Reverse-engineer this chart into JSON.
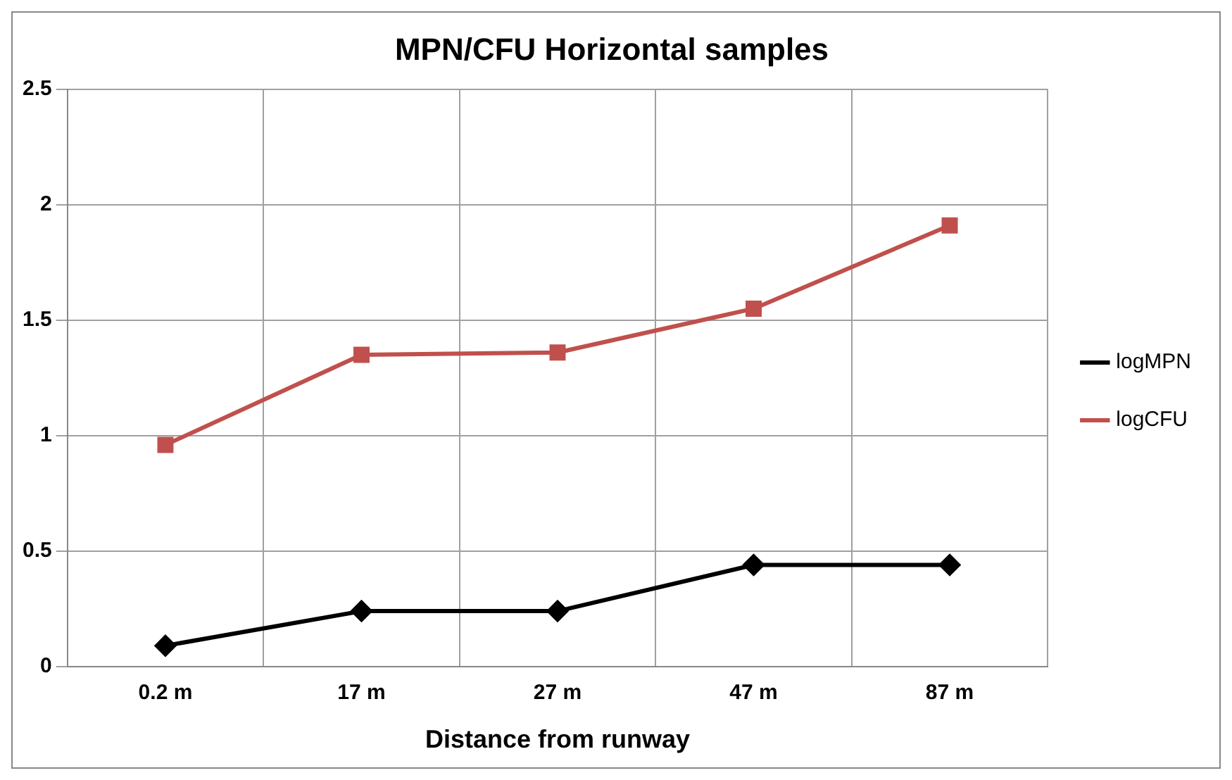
{
  "chart_data": {
    "type": "line",
    "title": "MPN/CFU Horizontal samples",
    "xlabel": "Distance from runway",
    "categories": [
      "0.2 m",
      "17 m",
      "27 m",
      "47 m",
      "87 m"
    ],
    "series": [
      {
        "name": "logMPN",
        "color": "#000000",
        "marker": "diamond",
        "values": [
          0.09,
          0.24,
          0.24,
          0.44,
          0.44
        ]
      },
      {
        "name": "logCFU",
        "color": "#c0504d",
        "marker": "square",
        "values": [
          0.96,
          1.35,
          1.36,
          1.55,
          1.91
        ]
      }
    ],
    "ylim": [
      0,
      2.5
    ],
    "yticks": [
      0,
      0.5,
      1,
      1.5,
      2,
      2.5
    ],
    "grid": true,
    "legend": "right",
    "line_style": "solid"
  }
}
